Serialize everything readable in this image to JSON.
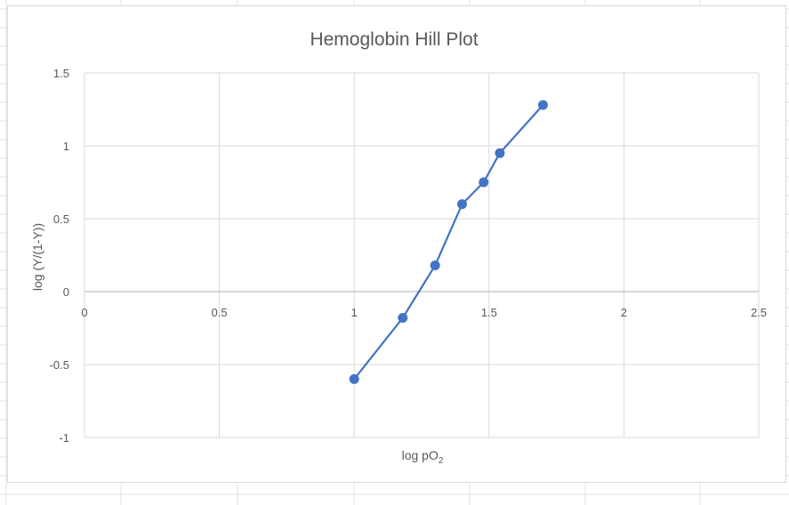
{
  "chart_data": {
    "type": "scatter",
    "title": "Hemoglobin Hill Plot",
    "xlabel_main": "log pO",
    "xlabel_sub": "2",
    "ylabel": "log (Y/(1-Y))",
    "xlim": [
      0,
      2.5
    ],
    "ylim": [
      -1,
      1.5
    ],
    "x_ticks": [
      {
        "value": 0,
        "label": "0"
      },
      {
        "value": 0.5,
        "label": "0.5"
      },
      {
        "value": 1,
        "label": "1"
      },
      {
        "value": 1.5,
        "label": "1.5"
      },
      {
        "value": 2,
        "label": "2"
      },
      {
        "value": 2.5,
        "label": "2.5"
      }
    ],
    "y_ticks": [
      {
        "value": -1,
        "label": "-1"
      },
      {
        "value": -0.5,
        "label": "-0.5"
      },
      {
        "value": 0,
        "label": "0"
      },
      {
        "value": 0.5,
        "label": "0.5"
      },
      {
        "value": 1,
        "label": "1"
      },
      {
        "value": 1.5,
        "label": "1.5"
      }
    ],
    "grid": true,
    "legend": "none",
    "series": [
      {
        "color": "#4472c4",
        "markers": true,
        "connected": true,
        "points": [
          {
            "x": 1.0,
            "y": -0.6
          },
          {
            "x": 1.18,
            "y": -0.18
          },
          {
            "x": 1.3,
            "y": 0.18
          },
          {
            "x": 1.4,
            "y": 0.6
          },
          {
            "x": 1.48,
            "y": 0.75
          },
          {
            "x": 1.54,
            "y": 0.95
          },
          {
            "x": 1.7,
            "y": 1.28
          }
        ]
      }
    ]
  },
  "colors": {
    "gridline": "#d9d9d9",
    "zero_axis": "#bfbfbf",
    "text": "#595959",
    "sheet_grid": "#e1e1e1"
  }
}
